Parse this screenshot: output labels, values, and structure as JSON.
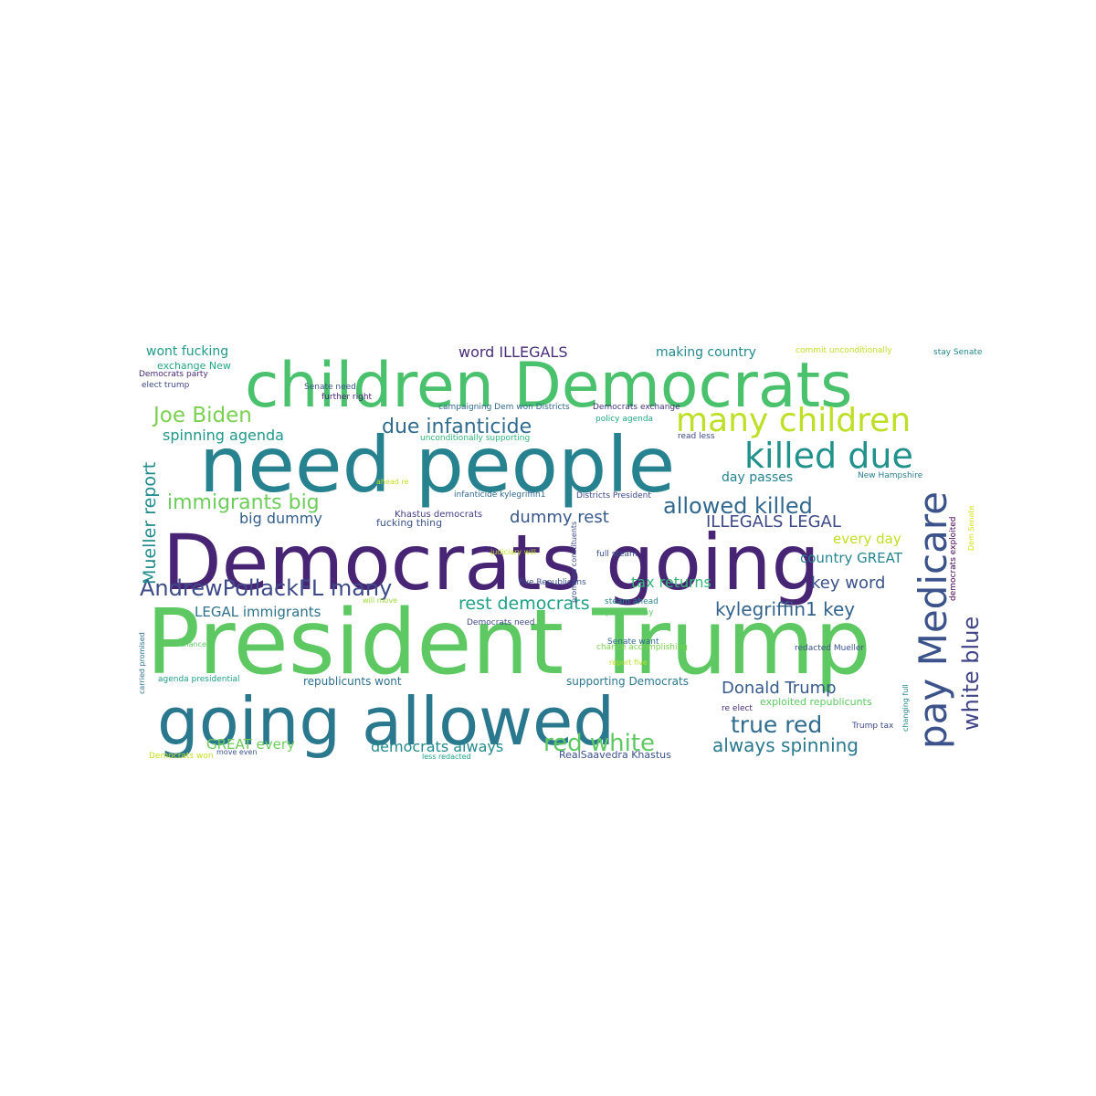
{
  "words": [
    {
      "text": "President Trump",
      "color": "#5ec962"
    },
    {
      "text": "Democrats going",
      "color": "#482475"
    },
    {
      "text": "need people",
      "color": "#26828e"
    },
    {
      "text": "children Democrats",
      "color": "#4ac16d"
    },
    {
      "text": "going allowed",
      "color": "#2a788e"
    },
    {
      "text": "pay Medicare",
      "color": "#3b528b"
    },
    {
      "text": "many children",
      "color": "#bddf26"
    },
    {
      "text": "killed due",
      "color": "#21918c"
    },
    {
      "text": "AndrewPollackFL many",
      "color": "#3e4a89"
    },
    {
      "text": "allowed killed",
      "color": "#31688e"
    },
    {
      "text": "due infanticide",
      "color": "#2f6c8e"
    },
    {
      "text": "Joe Biden",
      "color": "#7ad151"
    },
    {
      "text": "red white",
      "color": "#5ec962"
    },
    {
      "text": "true red",
      "color": "#2f6c8e"
    },
    {
      "text": "white blue",
      "color": "#414487"
    },
    {
      "text": "Mueller report",
      "color": "#228c8d"
    },
    {
      "text": "immigrants big",
      "color": "#6ccd5a"
    },
    {
      "text": "rest democrats",
      "color": "#1fa187"
    },
    {
      "text": "kylegriffin1 key",
      "color": "#33638d"
    },
    {
      "text": "Donald Trump",
      "color": "#375b8d"
    },
    {
      "text": "always spinning",
      "color": "#2a788e"
    },
    {
      "text": "democrats always",
      "color": "#238a8d"
    },
    {
      "text": "ILLEGALS LEGAL",
      "color": "#3e4989"
    },
    {
      "text": "dummy rest",
      "color": "#38588c"
    },
    {
      "text": "big dummy",
      "color": "#355f8d"
    },
    {
      "text": "key word",
      "color": "#3b528b"
    },
    {
      "text": "word ILLEGALS",
      "color": "#472d7b"
    },
    {
      "text": "spinning agenda",
      "color": "#1f978b"
    },
    {
      "text": "LEGAL immigrants",
      "color": "#2c728e"
    },
    {
      "text": "tax returns",
      "color": "#35b779"
    },
    {
      "text": "GREAT every",
      "color": "#6ccd5a"
    },
    {
      "text": "country GREAT",
      "color": "#25858e"
    },
    {
      "text": "every day",
      "color": "#c2df23"
    },
    {
      "text": "day passes",
      "color": "#26828e"
    },
    {
      "text": "making country",
      "color": "#23898e"
    },
    {
      "text": "wont fucking",
      "color": "#1f9a8a"
    },
    {
      "text": "fucking thing",
      "color": "#3b528b"
    },
    {
      "text": "exchange New",
      "color": "#22a884"
    },
    {
      "text": "Democrats party",
      "color": "#482878"
    },
    {
      "text": "elect trump",
      "color": "#3e4a89"
    },
    {
      "text": "republicunts wont",
      "color": "#2d708e"
    },
    {
      "text": "supporting Democrats",
      "color": "#2a788e"
    },
    {
      "text": "RealSaavedra Khastus",
      "color": "#3b528b"
    },
    {
      "text": "exploited republicunts",
      "color": "#5ec962"
    },
    {
      "text": "Khastus democrats",
      "color": "#433e85"
    },
    {
      "text": "campaigning Dem won Districts",
      "color": "#31688e"
    },
    {
      "text": "Democrats exchange",
      "color": "#46327e"
    },
    {
      "text": "Senate need",
      "color": "#3b528b"
    },
    {
      "text": "further right",
      "color": "#482475"
    },
    {
      "text": "unconditionally supporting",
      "color": "#2fb47c"
    },
    {
      "text": "policy agenda",
      "color": "#22a884"
    },
    {
      "text": "read less",
      "color": "#3e4989"
    },
    {
      "text": "commit unconditionally",
      "color": "#bddf26"
    },
    {
      "text": "stay Senate",
      "color": "#24878e"
    },
    {
      "text": "ahead re",
      "color": "#c2df23"
    },
    {
      "text": "infanticide kylegriffin1",
      "color": "#31688e"
    },
    {
      "text": "Districts President",
      "color": "#3e4989"
    },
    {
      "text": "New Hampshire",
      "color": "#277f8e"
    },
    {
      "text": "judiciary will",
      "color": "#bddf26"
    },
    {
      "text": "full steam",
      "color": "#3b528b"
    },
    {
      "text": "democrats exploited",
      "color": "#440154"
    },
    {
      "text": "Dem Senate",
      "color": "#d8e219"
    },
    {
      "text": "five Republicans",
      "color": "#3b528b"
    },
    {
      "text": "promised constituents",
      "color": "#3e4a89"
    },
    {
      "text": "will move",
      "color": "#a0da39"
    },
    {
      "text": "steam ahead",
      "color": "#24868e"
    },
    {
      "text": "people stay",
      "color": "#5ec962"
    },
    {
      "text": "Democrats need",
      "color": "#3e4989"
    },
    {
      "text": "Senate want",
      "color": "#31688e"
    },
    {
      "text": "chance accomplishing",
      "color": "#7ad151"
    },
    {
      "text": "want chance",
      "color": "#5ec962"
    },
    {
      "text": "report five",
      "color": "#bddf26"
    },
    {
      "text": "redacted Mueller",
      "color": "#3b528b"
    },
    {
      "text": "carried promised",
      "color": "#2c728e"
    },
    {
      "text": "agenda presidential",
      "color": "#1f9e89"
    },
    {
      "text": "re elect",
      "color": "#472d7b"
    },
    {
      "text": "changing full",
      "color": "#24868e"
    },
    {
      "text": "Trump tax",
      "color": "#3e4a89"
    },
    {
      "text": "Democrats won",
      "color": "#c8e020"
    },
    {
      "text": "move even",
      "color": "#3b528b"
    },
    {
      "text": "less redacted",
      "color": "#1fa187"
    }
  ]
}
